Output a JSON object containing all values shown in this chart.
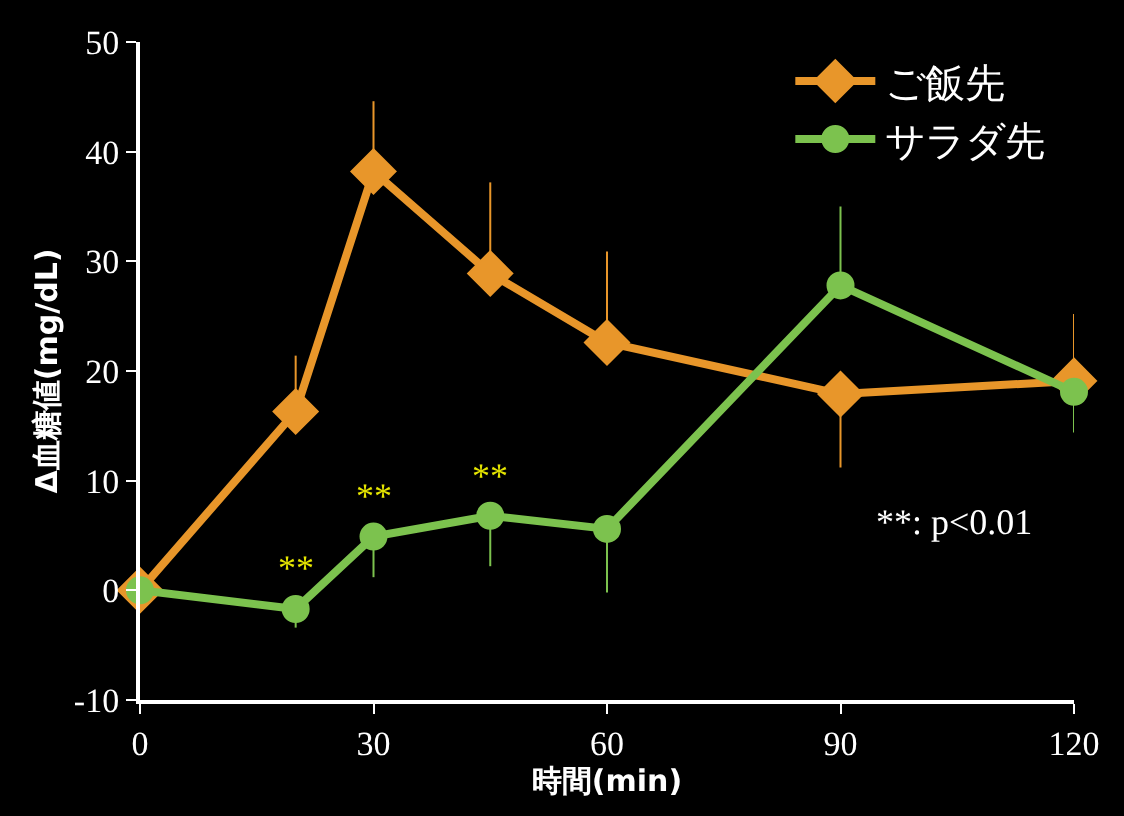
{
  "chart_data": {
    "type": "line",
    "xlabel": "時間(min)",
    "ylabel": "Δ血糖値(mg/dL)",
    "x": [
      0,
      20,
      30,
      45,
      60,
      90,
      120
    ],
    "series": [
      {
        "name": "ご飯先",
        "color": "#e8962a",
        "marker": "diamond",
        "values": [
          0,
          16.3,
          38.2,
          28.9,
          22.6,
          17.9,
          19.1
        ],
        "errors": [
          null,
          [
            16.3,
            21.4
          ],
          [
            38.2,
            44.6
          ],
          [
            28.9,
            37.2
          ],
          [
            22.6,
            30.9
          ],
          [
            11.2,
            17.9
          ],
          [
            19.1,
            25.2
          ]
        ]
      },
      {
        "name": "サラダ先",
        "color": "#7cc24e",
        "marker": "circle",
        "values": [
          0,
          -1.7,
          4.9,
          6.8,
          5.6,
          27.8,
          18.1
        ],
        "errors": [
          null,
          [
            -3.4,
            -1.7
          ],
          [
            1.2,
            4.9
          ],
          [
            2.2,
            6.8
          ],
          [
            -0.2,
            5.6
          ],
          [
            27.8,
            35
          ],
          [
            14.4,
            18.1
          ]
        ]
      }
    ],
    "xlim": [
      0,
      120
    ],
    "xticks": [
      0,
      30,
      60,
      90,
      120
    ],
    "ylim": [
      -10,
      50
    ],
    "yticks": [
      -10,
      0,
      10,
      20,
      30,
      40,
      50
    ],
    "grid": false,
    "legend": "top right",
    "annotations": [
      {
        "text": "**",
        "x": 20,
        "y": -1.7
      },
      {
        "text": "**",
        "x": 30,
        "y": 4.9
      },
      {
        "text": "**",
        "x": 45,
        "y": 6.8
      },
      "**: p<0.01"
    ]
  }
}
